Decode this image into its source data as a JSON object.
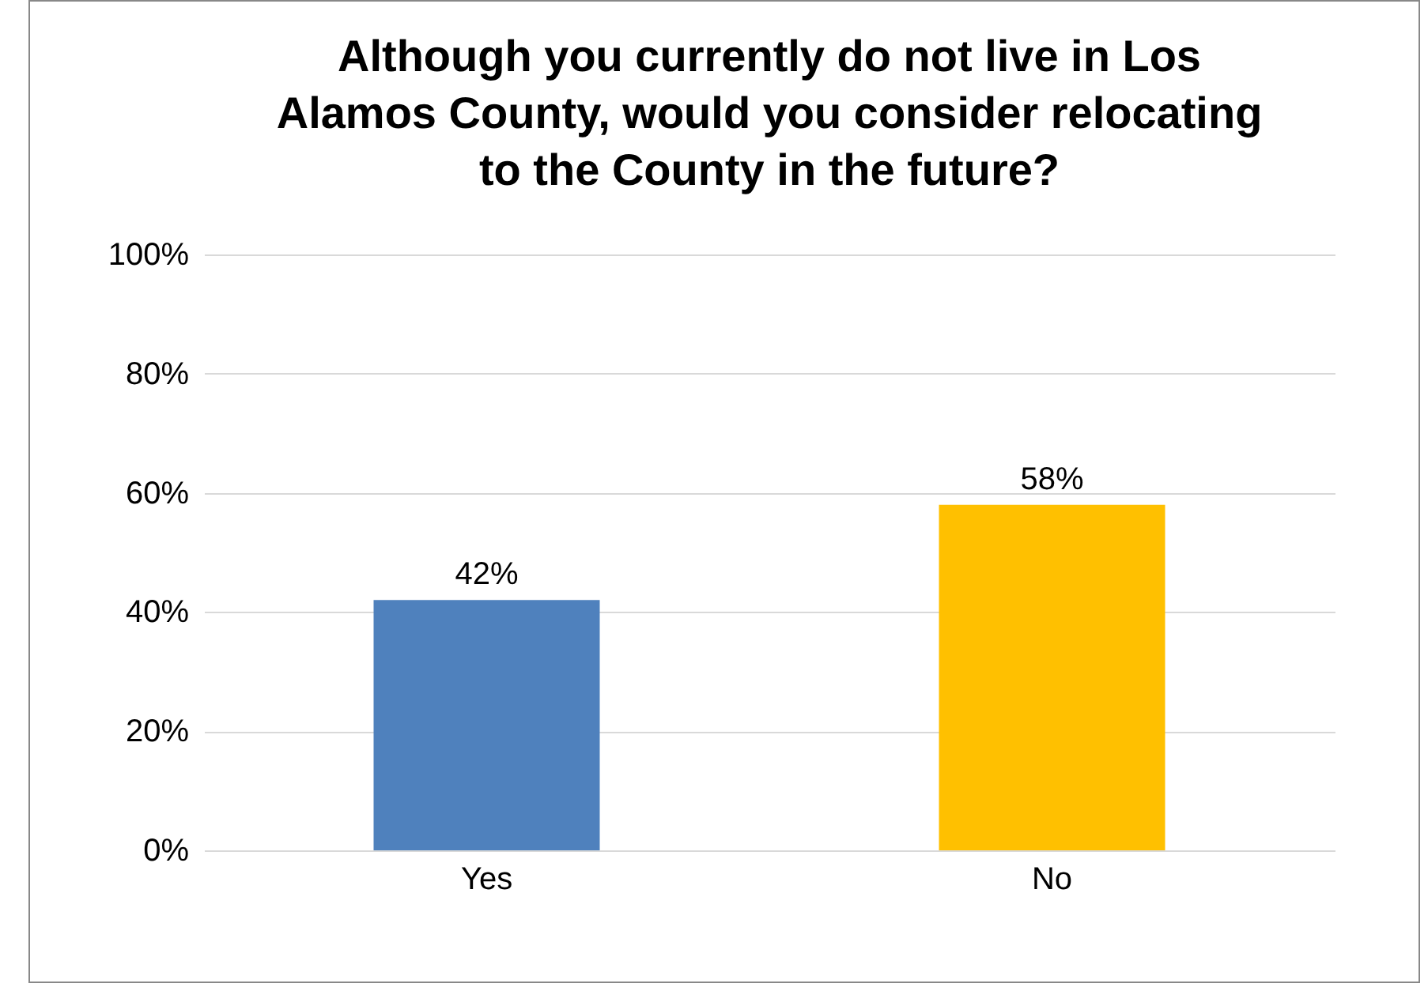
{
  "chart_data": {
    "type": "bar",
    "title": "Although you currently do not live in Los Alamos County, would you consider relocating to the County in the future?",
    "categories": [
      "Yes",
      "No"
    ],
    "values": [
      42,
      58
    ],
    "value_labels": [
      "42%",
      "58%"
    ],
    "colors": [
      "#4f81bd",
      "#ffc000"
    ],
    "ylim": [
      0,
      100
    ],
    "yticks": [
      {
        "value": 0,
        "label": "0%"
      },
      {
        "value": 20,
        "label": "20%"
      },
      {
        "value": 40,
        "label": "40%"
      },
      {
        "value": 60,
        "label": "60%"
      },
      {
        "value": 80,
        "label": "80%"
      },
      {
        "value": 100,
        "label": "100%"
      }
    ],
    "grid": "y"
  }
}
